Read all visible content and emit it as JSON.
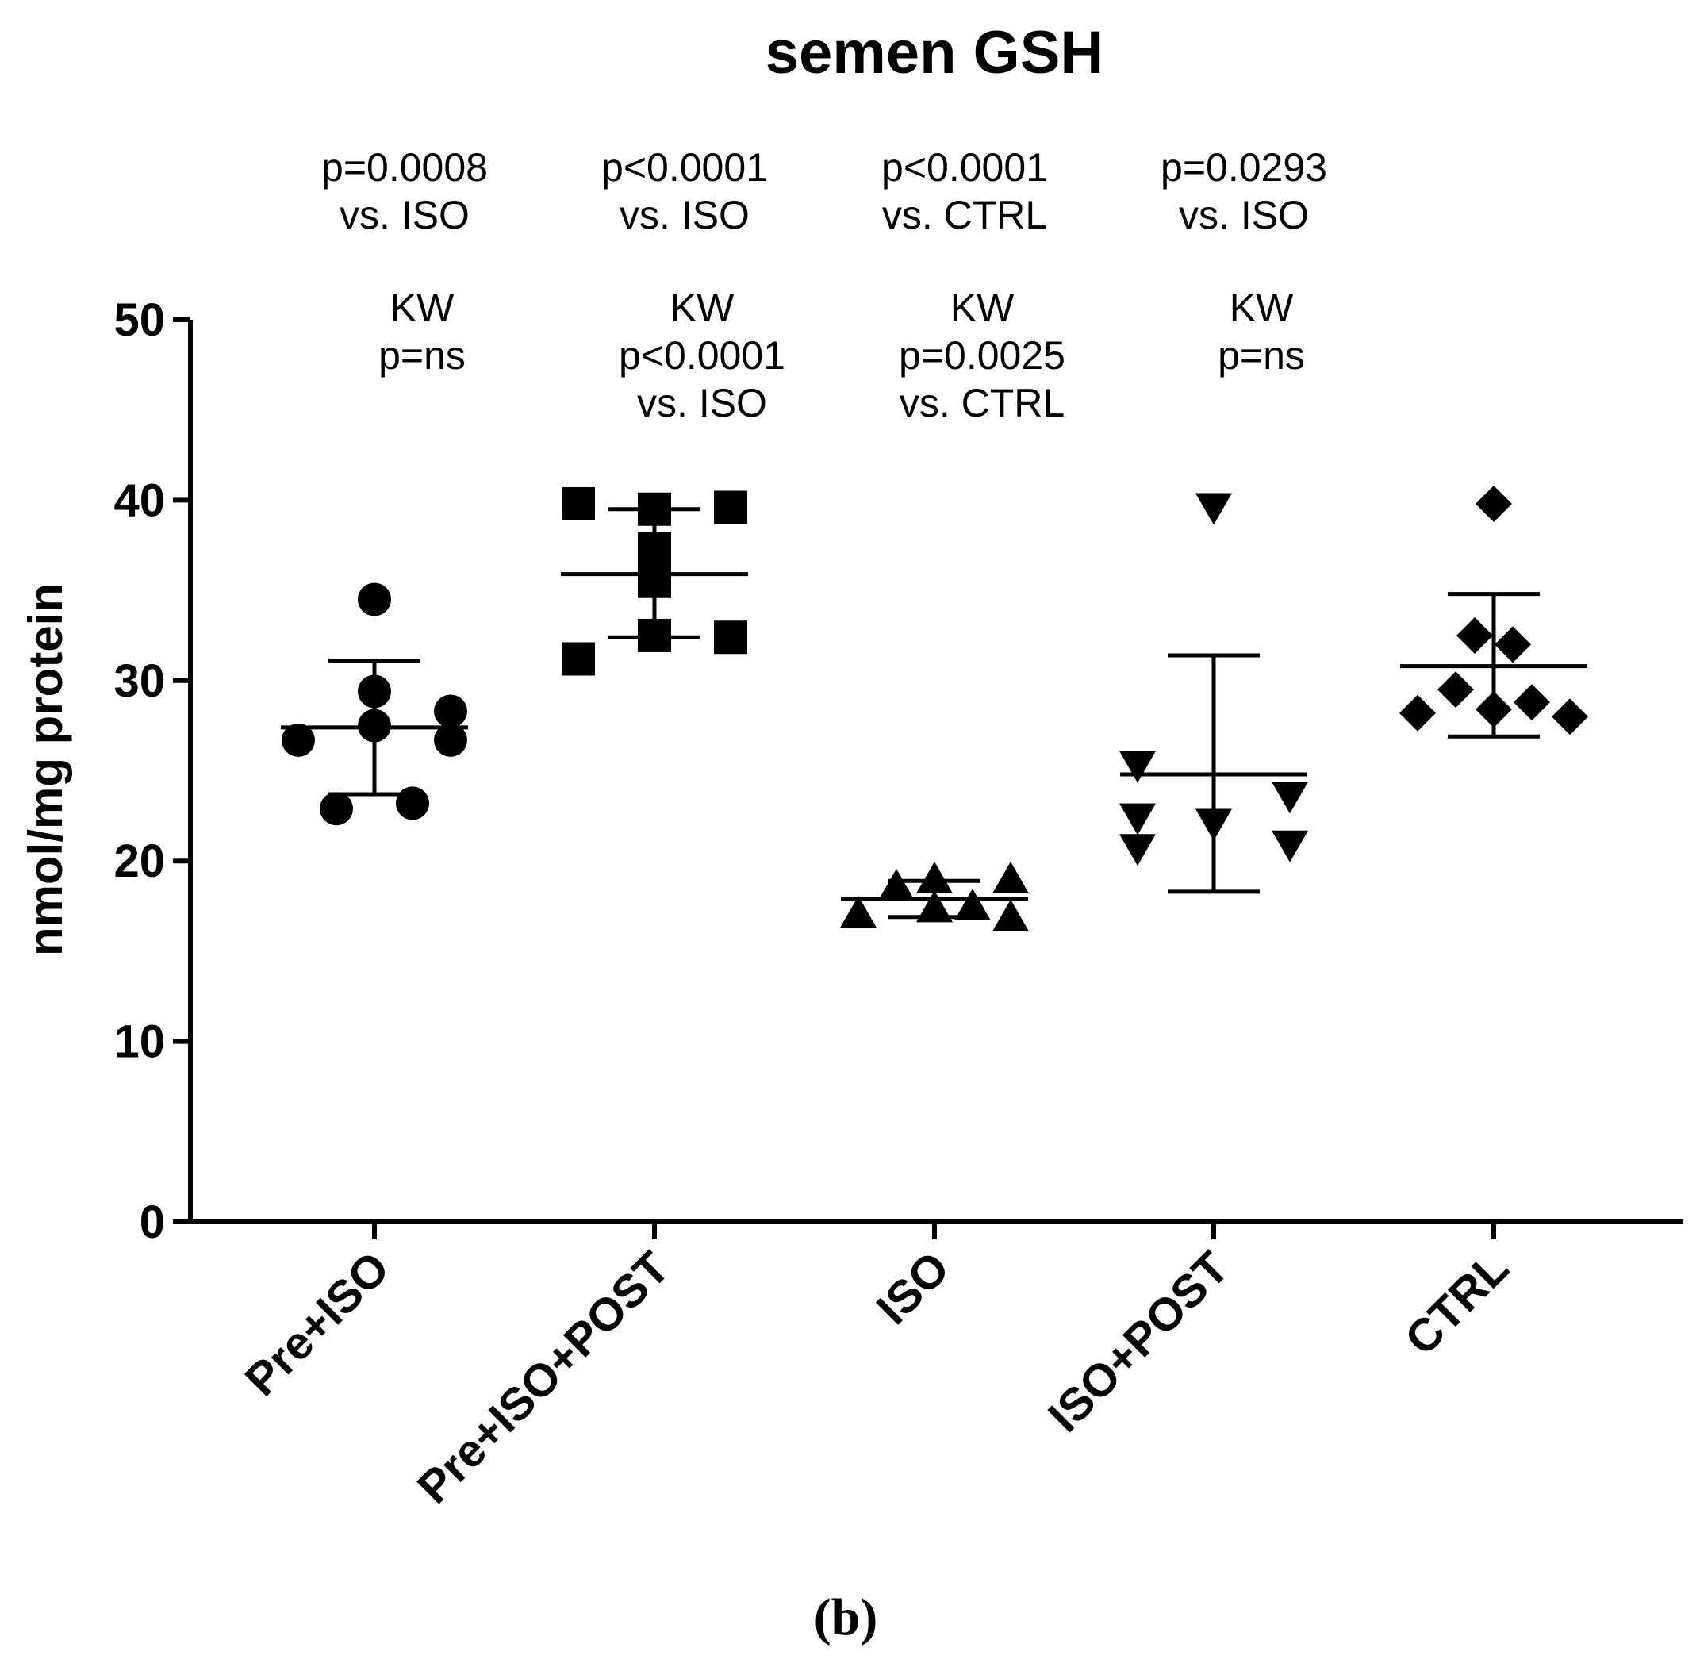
{
  "chart_data": {
    "type": "scatter",
    "title": "semen GSH",
    "xlabel": "",
    "ylabel": "nmol/mg protein",
    "ylim": [
      0,
      50
    ],
    "yticks": [
      0,
      10,
      20,
      30,
      40,
      50
    ],
    "grid": false,
    "panel_label": "(b)",
    "categories": [
      "Pre+ISO",
      "Pre+ISO+POST",
      "ISO",
      "ISO+POST",
      "CTRL"
    ],
    "series": [
      {
        "name": "Pre+ISO",
        "marker": "circle",
        "points": [
          [
            -1,
            26.7
          ],
          [
            -0.5,
            22.9
          ],
          [
            0,
            34.5
          ],
          [
            0,
            29.4
          ],
          [
            0,
            27.5
          ],
          [
            0.5,
            23.2
          ],
          [
            1,
            28.3
          ],
          [
            1,
            26.7
          ]
        ],
        "mean": 27.4,
        "sd_low": 23.7,
        "sd_high": 31.1,
        "p_annotation": [
          "p=0.0008",
          "vs. ISO"
        ],
        "kw_annotation": [
          "KW",
          "p=ns"
        ]
      },
      {
        "name": "Pre+ISO+POST",
        "marker": "square",
        "points": [
          [
            -1,
            39.8
          ],
          [
            -1,
            31.2
          ],
          [
            0,
            39.5
          ],
          [
            0,
            37.3
          ],
          [
            0,
            35.5
          ],
          [
            0,
            32.5
          ],
          [
            1,
            39.6
          ],
          [
            1,
            32.4
          ]
        ],
        "mean": 35.9,
        "sd_low": 32.4,
        "sd_high": 39.5,
        "p_annotation": [
          "p<0.0001",
          "vs. ISO"
        ],
        "kw_annotation": [
          "KW",
          "p<0.0001",
          "vs. ISO"
        ]
      },
      {
        "name": "ISO",
        "marker": "triangle-up",
        "points": [
          [
            -1,
            17.1
          ],
          [
            -0.5,
            18.6
          ],
          [
            0,
            19.0
          ],
          [
            0,
            17.4
          ],
          [
            0.5,
            17.5
          ],
          [
            1,
            19.0
          ],
          [
            1,
            16.9
          ]
        ],
        "mean": 17.9,
        "sd_low": 16.9,
        "sd_high": 18.9,
        "p_annotation": [
          "p<0.0001",
          "vs. CTRL"
        ],
        "kw_annotation": [
          "KW",
          "p=0.0025",
          "vs. CTRL"
        ]
      },
      {
        "name": "ISO+POST",
        "marker": "triangle-down",
        "points": [
          [
            -1,
            25.3
          ],
          [
            -1,
            22.4
          ],
          [
            -1,
            20.7
          ],
          [
            0,
            39.6
          ],
          [
            0,
            22.1
          ],
          [
            1,
            23.6
          ],
          [
            1,
            20.9
          ]
        ],
        "mean": 24.8,
        "sd_low": 18.3,
        "sd_high": 31.4,
        "p_annotation": [
          "p=0.0293",
          "vs. ISO"
        ],
        "kw_annotation": [
          "KW",
          "p=ns"
        ]
      },
      {
        "name": "CTRL",
        "marker": "diamond",
        "points": [
          [
            -1,
            28.2
          ],
          [
            -0.5,
            29.5
          ],
          [
            -0.25,
            32.5
          ],
          [
            0,
            39.8
          ],
          [
            0,
            28.4
          ],
          [
            0.25,
            32.0
          ],
          [
            0.5,
            28.8
          ],
          [
            1,
            28.0
          ]
        ],
        "mean": 30.8,
        "sd_low": 26.9,
        "sd_high": 34.8,
        "p_annotation": [],
        "kw_annotation": []
      }
    ]
  }
}
